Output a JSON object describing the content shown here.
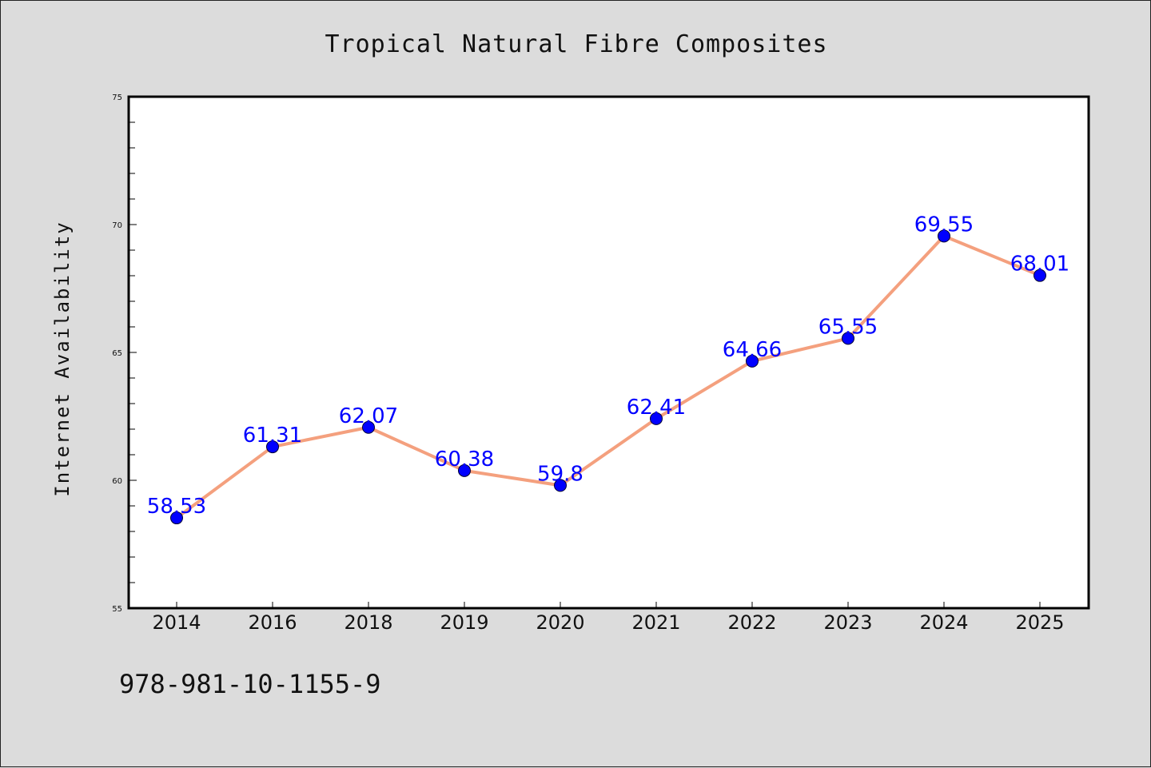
{
  "figure": {
    "isbn_text": "978-981-10-1155-9"
  },
  "chart_data": {
    "type": "line",
    "title": "Tropical Natural Fibre Composites",
    "xlabel": "",
    "ylabel": "Internet Availability",
    "categories": [
      "2014",
      "2016",
      "2018",
      "2019",
      "2020",
      "2021",
      "2022",
      "2023",
      "2024",
      "2025"
    ],
    "values": [
      58.53,
      61.31,
      62.07,
      60.38,
      59.8,
      62.41,
      64.66,
      65.55,
      69.55,
      68.01
    ],
    "data_labels": [
      "58.53",
      "61.31",
      "62.07",
      "60.38",
      "59.8",
      "62.41",
      "64.66",
      "65.55",
      "69.55",
      "68.01"
    ],
    "ylim": [
      55,
      75
    ],
    "yticks": [
      55,
      60,
      65,
      70,
      75
    ],
    "ytick_labels": [
      "55",
      "60",
      "65",
      "70",
      "75"
    ],
    "grid": false,
    "colors": {
      "line": "#f4a07e",
      "marker": "#0000ff",
      "data_label": "#0000ff",
      "plot_background": "#ffffff",
      "figure_background": "#dcdcdc"
    }
  }
}
